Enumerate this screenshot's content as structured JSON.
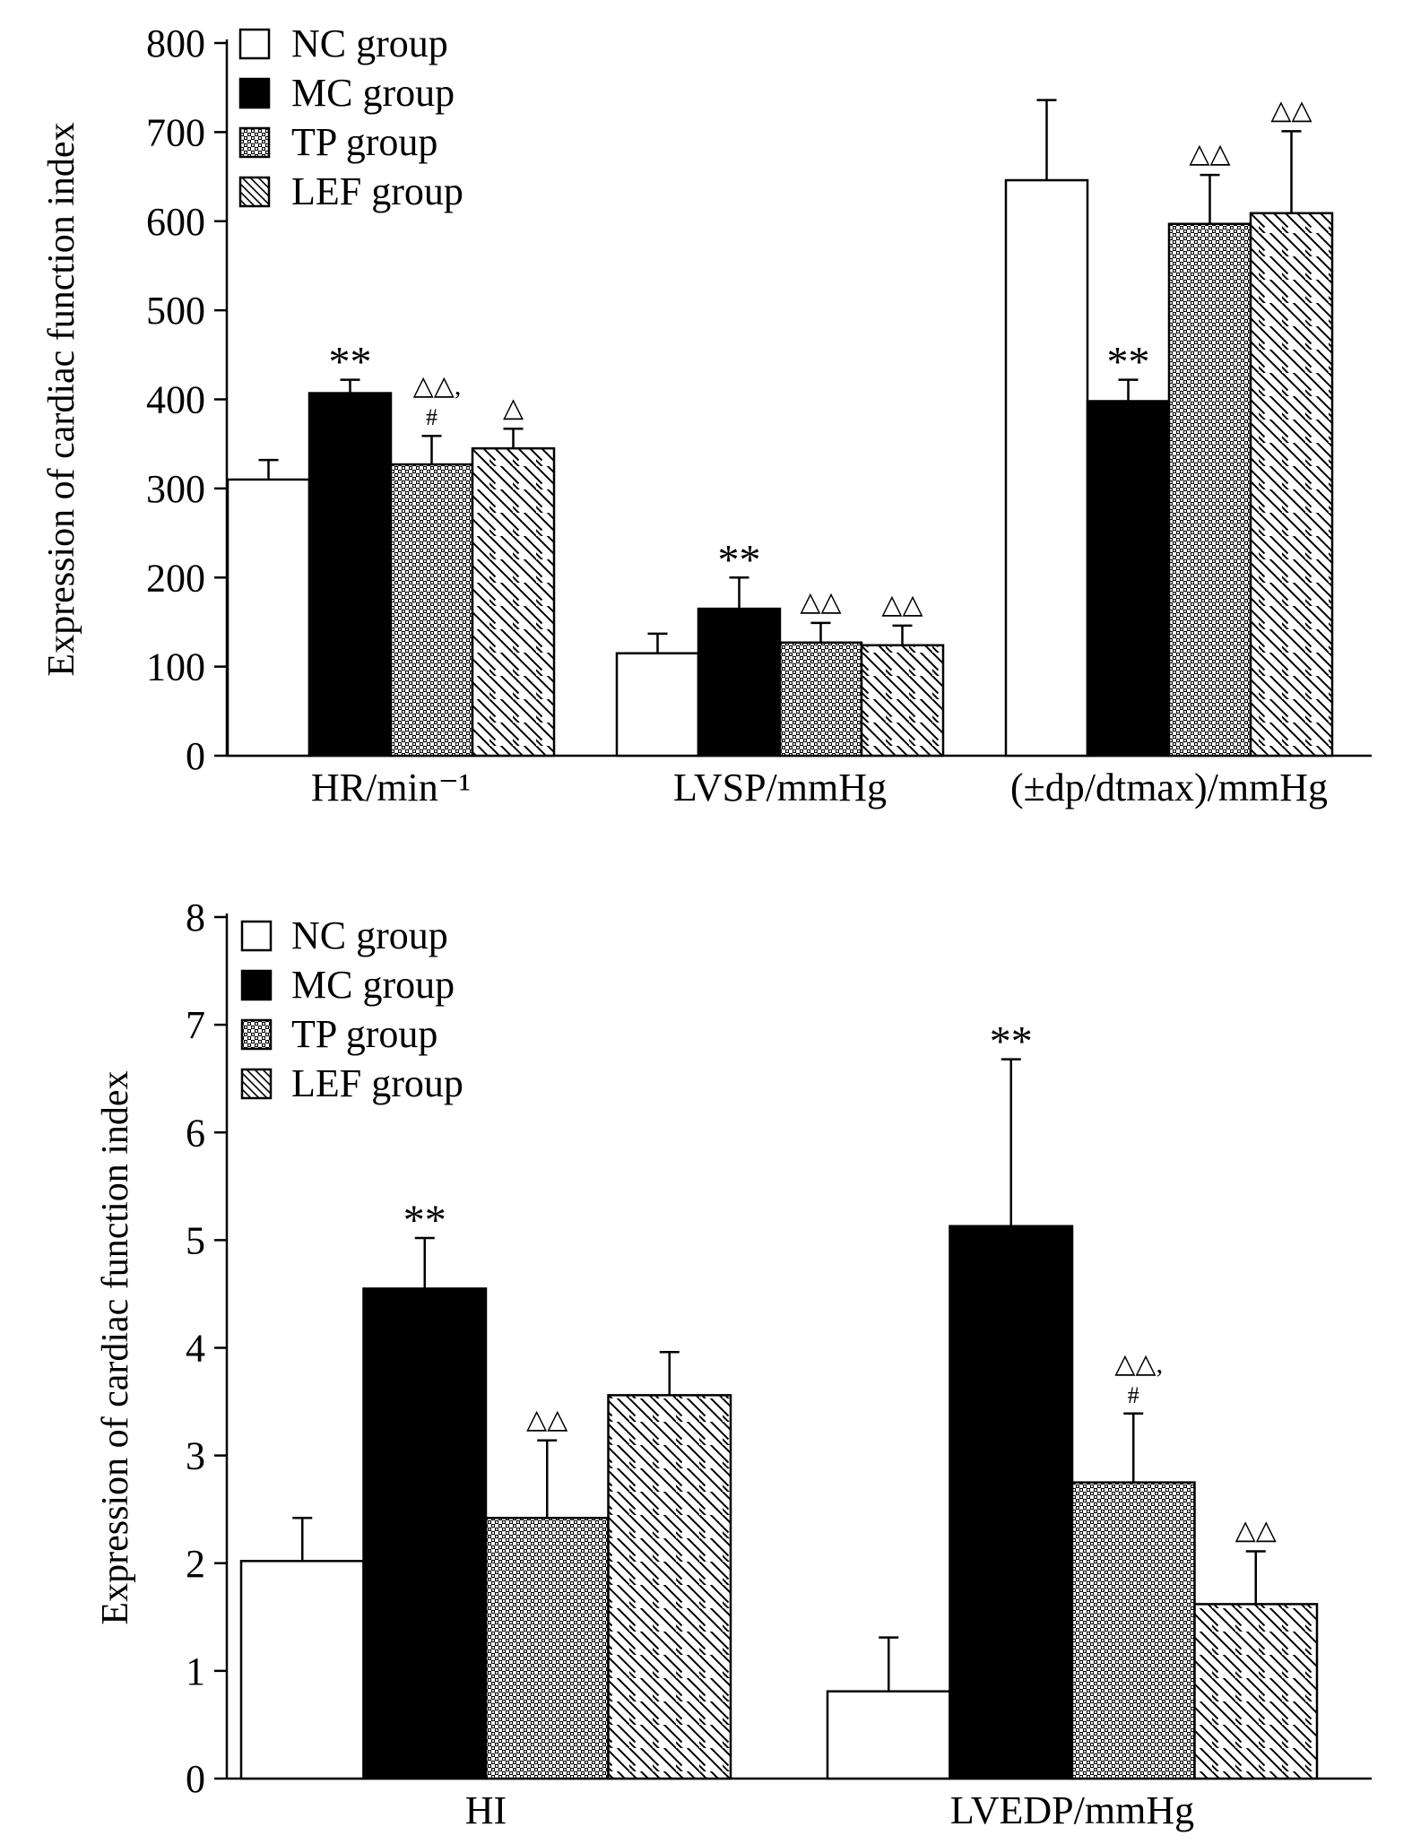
{
  "chart_data": [
    {
      "type": "bar",
      "ylabel": "Expression of cardiac function index",
      "ylim": [
        0,
        800
      ],
      "yticks": [
        0,
        100,
        200,
        300,
        400,
        500,
        600,
        700,
        800
      ],
      "categories": [
        "HR/min⁻¹",
        "LVSP/mmHg",
        "(±dp/dtmax)/mmHg"
      ],
      "legend": "top-left",
      "grid": false,
      "series": [
        {
          "name": "NC group",
          "fill": "white",
          "values": [
            310,
            115,
            646
          ],
          "errors": [
            22,
            22,
            90
          ]
        },
        {
          "name": "MC group",
          "fill": "black",
          "values": [
            407,
            165,
            398
          ],
          "errors": [
            15,
            35,
            24
          ]
        },
        {
          "name": "TP group",
          "fill": "dots",
          "values": [
            327,
            127,
            597
          ],
          "errors": [
            32,
            22,
            55
          ]
        },
        {
          "name": "LEF group",
          "fill": "hatch",
          "values": [
            345,
            124,
            609
          ],
          "errors": [
            22,
            22,
            92
          ]
        }
      ],
      "annotations": [
        {
          "category": 0,
          "series": 1,
          "lines": [
            "**"
          ]
        },
        {
          "category": 0,
          "series": 2,
          "lines": [
            "△△,",
            "#"
          ]
        },
        {
          "category": 0,
          "series": 3,
          "lines": [
            "△"
          ]
        },
        {
          "category": 1,
          "series": 1,
          "lines": [
            "**"
          ]
        },
        {
          "category": 1,
          "series": 2,
          "lines": [
            "△△"
          ]
        },
        {
          "category": 1,
          "series": 3,
          "lines": [
            "△△"
          ]
        },
        {
          "category": 2,
          "series": 1,
          "lines": [
            "**"
          ]
        },
        {
          "category": 2,
          "series": 2,
          "lines": [
            "△△"
          ]
        },
        {
          "category": 2,
          "series": 3,
          "lines": [
            "△△"
          ]
        }
      ]
    },
    {
      "type": "bar",
      "ylabel": "Expression of cardiac function index",
      "ylim": [
        0,
        8
      ],
      "yticks": [
        0,
        1,
        2,
        3,
        4,
        5,
        6,
        7,
        8
      ],
      "categories": [
        "HI",
        "LVEDP/mmHg"
      ],
      "legend": "top-left",
      "grid": false,
      "series": [
        {
          "name": "NC group",
          "fill": "white",
          "values": [
            2.02,
            0.81
          ],
          "errors": [
            0.4,
            0.5
          ]
        },
        {
          "name": "MC group",
          "fill": "black",
          "values": [
            4.55,
            5.13
          ],
          "errors": [
            0.47,
            1.55
          ]
        },
        {
          "name": "TP group",
          "fill": "dots",
          "values": [
            2.42,
            2.75
          ],
          "errors": [
            0.72,
            0.64
          ]
        },
        {
          "name": "LEF group",
          "fill": "hatch",
          "values": [
            3.56,
            1.62
          ],
          "errors": [
            0.4,
            0.49
          ]
        }
      ],
      "annotations": [
        {
          "category": 0,
          "series": 1,
          "lines": [
            "**"
          ]
        },
        {
          "category": 0,
          "series": 2,
          "lines": [
            "△△"
          ]
        },
        {
          "category": 1,
          "series": 1,
          "lines": [
            "**"
          ]
        },
        {
          "category": 1,
          "series": 2,
          "lines": [
            "△△,",
            "#"
          ]
        },
        {
          "category": 1,
          "series": 3,
          "lines": [
            "△△"
          ]
        }
      ]
    }
  ]
}
